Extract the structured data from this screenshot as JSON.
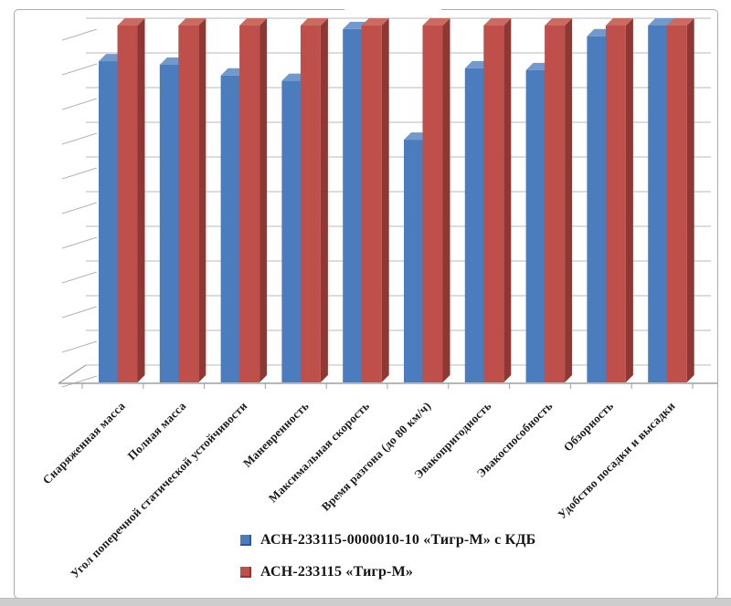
{
  "chart_data": {
    "type": "bar",
    "projection": "3d-clustered-column",
    "title": "",
    "xlabel": "",
    "ylabel": "",
    "ylim": [
      0,
      10
    ],
    "gridline_count": 10,
    "grid": "on",
    "value_axis_labels_visible": false,
    "legend_position": "bottom",
    "categories": [
      "Снаряженная масса",
      "Полная масса",
      "Угол поперечной статической устойчивости",
      "Маневренность",
      "Максимальная скорость",
      "Время разгона (до 80 км/ч)",
      "Эвакопригодность",
      "Эвакоспособность",
      "Обзорность",
      "Удобство посадки и высадки"
    ],
    "series": [
      {
        "name": "АСН-233115-0000010-10 «Тигр-М» с КДБ",
        "color": "#4a7cbe",
        "color_top": "#7199cb",
        "color_side": "#31598e",
        "values": [
          9.0,
          8.9,
          8.6,
          8.45,
          9.9,
          6.8,
          8.8,
          8.75,
          9.7,
          10.0
        ]
      },
      {
        "name": "АСН-233115 «Тигр-М»",
        "color": "#bf4f4a",
        "color_top": "#ca6a61",
        "color_side": "#8e3733",
        "values": [
          10,
          10,
          10,
          10,
          10,
          10,
          10,
          10,
          10,
          10
        ]
      }
    ]
  },
  "style_colors": {
    "gridline": "#b6bac0",
    "wall_tick": "#b0b4ba",
    "axis": "#9aa0a6",
    "frame": "#a9abae",
    "page_edge_strip": "#cdcdcd"
  }
}
